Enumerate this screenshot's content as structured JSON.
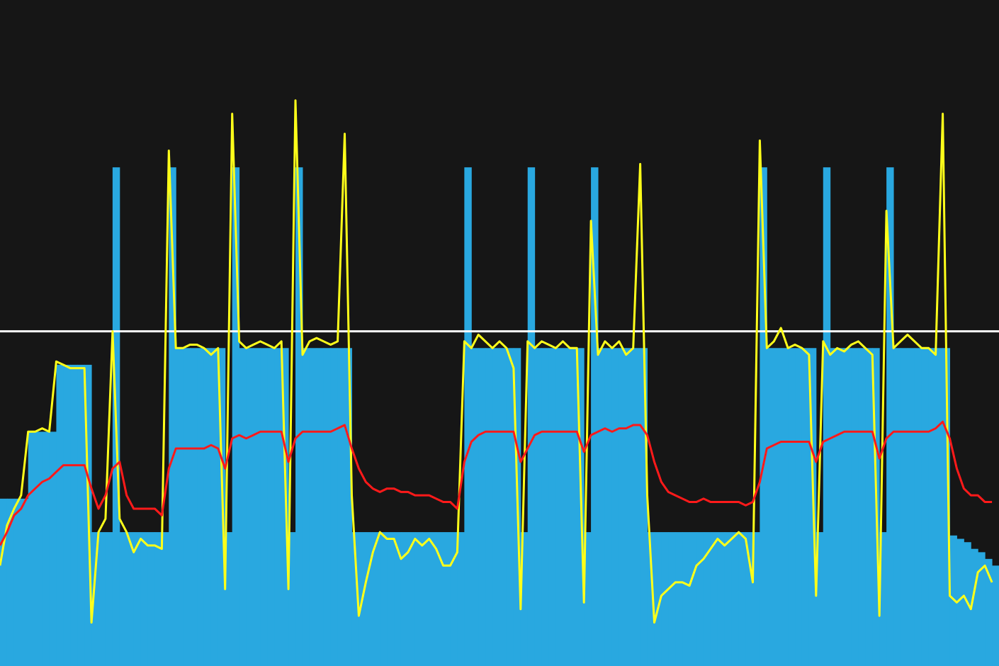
{
  "chart_data": {
    "type": "workout",
    "background": "#161616",
    "xlim": [
      0,
      142
    ],
    "ylim": [
      0,
      199
    ],
    "x": [
      0,
      1,
      2,
      3,
      4,
      5,
      6,
      7,
      8,
      9,
      10,
      11,
      12,
      13,
      14,
      15,
      16,
      17,
      18,
      19,
      20,
      21,
      22,
      23,
      24,
      25,
      26,
      27,
      28,
      29,
      30,
      31,
      32,
      33,
      34,
      35,
      36,
      37,
      38,
      39,
      40,
      41,
      42,
      43,
      44,
      45,
      46,
      47,
      48,
      49,
      50,
      51,
      52,
      53,
      54,
      55,
      56,
      57,
      58,
      59,
      60,
      61,
      62,
      63,
      64,
      65,
      66,
      67,
      68,
      69,
      70,
      71,
      72,
      73,
      74,
      75,
      76,
      77,
      78,
      79,
      80,
      81,
      82,
      83,
      84,
      85,
      86,
      87,
      88,
      89,
      90,
      91,
      92,
      93,
      94,
      95,
      96,
      97,
      98,
      99,
      100,
      101,
      102,
      103,
      104,
      105,
      106,
      107,
      108,
      109,
      110,
      111,
      112,
      113,
      114,
      115,
      116,
      117,
      118,
      119,
      120,
      121,
      122,
      123,
      124,
      125,
      126,
      127,
      128,
      129,
      130,
      131,
      132,
      133,
      134,
      135,
      136,
      137,
      138,
      139,
      140,
      141
    ],
    "reference_lines": [
      {
        "value": 100,
        "color": "#ffffff"
      }
    ],
    "series": [
      {
        "style": "bars",
        "color": "#29a8e0",
        "values": [
          50,
          50,
          50,
          50,
          70,
          70,
          70,
          70,
          90,
          90,
          90,
          90,
          90,
          40,
          40,
          40,
          149,
          40,
          40,
          40,
          40,
          40,
          40,
          40,
          149,
          95,
          95,
          95,
          95,
          95,
          95,
          95,
          40,
          149,
          95,
          95,
          95,
          95,
          95,
          95,
          95,
          40,
          149,
          95,
          95,
          95,
          95,
          95,
          95,
          95,
          40,
          40,
          40,
          40,
          40,
          40,
          40,
          40,
          40,
          40,
          40,
          40,
          40,
          40,
          40,
          40,
          149,
          95,
          95,
          95,
          95,
          95,
          95,
          95,
          40,
          149,
          95,
          95,
          95,
          95,
          95,
          95,
          95,
          40,
          149,
          95,
          95,
          95,
          95,
          95,
          95,
          95,
          40,
          40,
          40,
          40,
          40,
          40,
          40,
          40,
          40,
          40,
          40,
          40,
          40,
          40,
          40,
          40,
          149,
          95,
          95,
          95,
          95,
          95,
          95,
          95,
          40,
          149,
          95,
          95,
          95,
          95,
          95,
          95,
          95,
          40,
          149,
          95,
          95,
          95,
          95,
          95,
          95,
          95,
          95,
          39,
          38,
          37,
          35,
          34,
          32,
          30
        ]
      },
      {
        "style": "line",
        "color": "#ffff1a",
        "values": [
          30,
          42,
          47,
          51,
          70,
          70,
          71,
          70,
          91,
          90,
          89,
          89,
          89,
          13,
          40,
          44,
          100,
          44,
          40,
          34,
          38,
          36,
          36,
          35,
          154,
          95,
          95,
          96,
          96,
          95,
          93,
          95,
          23,
          165,
          97,
          95,
          96,
          97,
          96,
          95,
          97,
          23,
          169,
          93,
          97,
          98,
          97,
          96,
          97,
          159,
          51,
          15,
          25,
          34,
          40,
          38,
          38,
          32,
          34,
          38,
          36,
          38,
          35,
          30,
          30,
          34,
          97,
          95,
          99,
          97,
          95,
          97,
          95,
          89,
          17,
          97,
          95,
          97,
          96,
          95,
          97,
          95,
          95,
          19,
          133,
          93,
          97,
          95,
          97,
          93,
          95,
          150,
          51,
          13,
          21,
          23,
          25,
          25,
          24,
          30,
          32,
          35,
          38,
          36,
          38,
          40,
          38,
          25,
          157,
          95,
          97,
          101,
          95,
          96,
          95,
          93,
          21,
          97,
          93,
          95,
          94,
          96,
          97,
          95,
          93,
          15,
          136,
          95,
          97,
          99,
          97,
          95,
          95,
          93,
          165,
          21,
          19,
          21,
          17,
          28,
          30,
          25
        ]
      },
      {
        "style": "line",
        "color": "#ff1a1a",
        "values": [
          36,
          40,
          45,
          47,
          51,
          53,
          55,
          56,
          58,
          60,
          60,
          60,
          60,
          53,
          47,
          51,
          59,
          61,
          51,
          47,
          47,
          47,
          47,
          45,
          59,
          65,
          65,
          65,
          65,
          65,
          66,
          65,
          59,
          68,
          69,
          68,
          69,
          70,
          70,
          70,
          70,
          61,
          68,
          70,
          70,
          70,
          70,
          70,
          71,
          72,
          65,
          59,
          55,
          53,
          52,
          53,
          53,
          52,
          52,
          51,
          51,
          51,
          50,
          49,
          49,
          47,
          61,
          67,
          69,
          70,
          70,
          70,
          70,
          70,
          61,
          65,
          69,
          70,
          70,
          70,
          70,
          70,
          70,
          64,
          69,
          70,
          71,
          70,
          71,
          71,
          72,
          72,
          69,
          61,
          55,
          52,
          51,
          50,
          49,
          49,
          50,
          49,
          49,
          49,
          49,
          49,
          48,
          49,
          55,
          65,
          66,
          67,
          67,
          67,
          67,
          67,
          61,
          67,
          68,
          69,
          70,
          70,
          70,
          70,
          70,
          62,
          68,
          70,
          70,
          70,
          70,
          70,
          70,
          71,
          73,
          68,
          59,
          53,
          51,
          51,
          49,
          49
        ]
      }
    ]
  }
}
